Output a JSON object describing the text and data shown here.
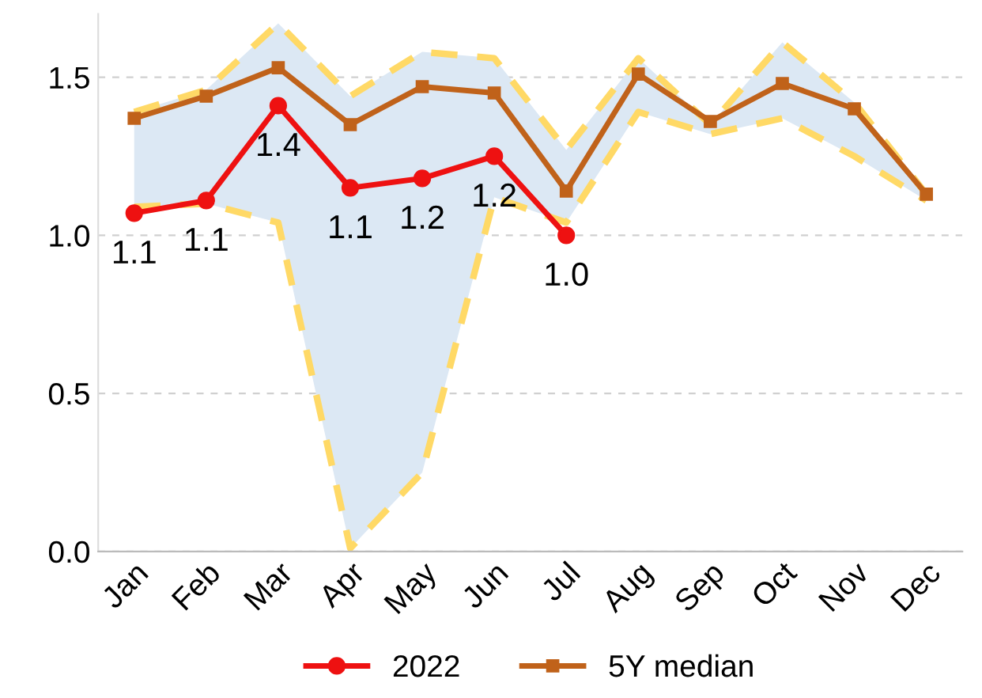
{
  "chart_data": {
    "type": "line",
    "categories": [
      "Jan",
      "Feb",
      "Mar",
      "Apr",
      "May",
      "Jun",
      "Jul",
      "Aug",
      "Sep",
      "Oct",
      "Nov",
      "Dec"
    ],
    "series": [
      {
        "color": "#ffd966",
        "line_style": "dashed",
        "marker": "none",
        "values": [
          1.39,
          1.46,
          1.67,
          1.44,
          1.58,
          1.56,
          1.27,
          1.56,
          1.35,
          1.61,
          1.42,
          1.13
        ]
      },
      {
        "color": "#ffd966",
        "line_style": "dashed",
        "marker": "none",
        "values": [
          1.09,
          1.1,
          1.04,
          0.01,
          0.25,
          1.12,
          1.04,
          1.39,
          1.32,
          1.37,
          1.25,
          1.11
        ]
      },
      {
        "name": "2022",
        "color": "#ee1111",
        "marker": "circle",
        "values": [
          1.07,
          1.11,
          1.41,
          1.15,
          1.18,
          1.25,
          1.0,
          null,
          null,
          null,
          null,
          null
        ],
        "value_labels": [
          "1.1",
          "1.1",
          "1.4",
          "1.1",
          "1.2",
          "1.2",
          "1.0",
          null,
          null,
          null,
          null,
          null
        ]
      },
      {
        "name": "5Y median",
        "color": "#c0621a",
        "marker": "square",
        "values": [
          1.37,
          1.44,
          1.53,
          1.35,
          1.47,
          1.45,
          1.14,
          1.51,
          1.36,
          1.48,
          1.4,
          1.13
        ],
        "lower": [
          1.09,
          1.1,
          1.04,
          0.01,
          0.25,
          1.12,
          1.04,
          1.39,
          1.32,
          1.37,
          1.25,
          1.11
        ],
        "upper": [
          1.39,
          1.46,
          1.67,
          1.44,
          1.58,
          1.56,
          1.27,
          1.56,
          1.35,
          1.61,
          1.42,
          1.13
        ]
      }
    ],
    "ylim": [
      0,
      1.7
    ],
    "yticks": [
      {
        "value": 0,
        "label": "0.0"
      },
      {
        "value": 0.5,
        "label": "0.5"
      },
      {
        "value": 1,
        "label": "1.0"
      },
      {
        "value": 1.5,
        "label": "1.5"
      }
    ],
    "grid": "y",
    "legend": "bottom"
  }
}
